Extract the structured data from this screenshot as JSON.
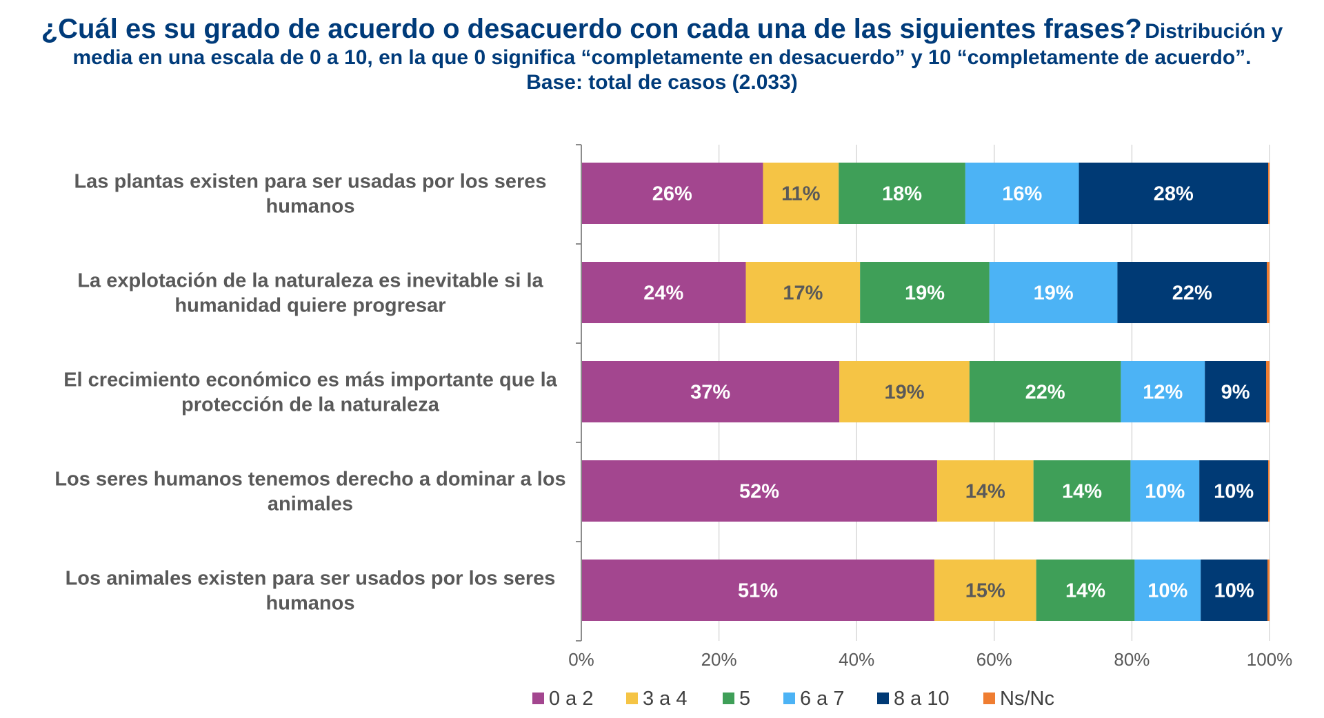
{
  "title": {
    "question": "¿Cuál es su grado de acuerdo o desacuerdo con cada una de las siguientes frases?",
    "subtitle": "Distribución y media en una escala de 0 a 10, en la que 0 significa “completamente en desacuerdo” y 10 “completamente de acuerdo”.",
    "base": "Base: total de casos (2.033)"
  },
  "chart_data": {
    "type": "bar",
    "orientation": "horizontal",
    "stacked": true,
    "percent_stacked": true,
    "xlim": [
      0,
      100
    ],
    "x_ticks": [
      "0%",
      "20%",
      "40%",
      "60%",
      "80%",
      "100%"
    ],
    "grid": true,
    "legend_position": "bottom",
    "categories": [
      [
        "Las plantas existen para ser usadas por los seres",
        "humanos"
      ],
      [
        "La explotación de la naturaleza es inevitable si la",
        "humanidad quiere progresar"
      ],
      [
        "El crecimiento económico es más importante que la",
        "protección de la naturaleza"
      ],
      [
        "Los seres humanos tenemos derecho a dominar a los",
        "animales"
      ],
      [
        "Los animales existen para ser usados por los seres",
        "humanos"
      ]
    ],
    "series": [
      {
        "name": "0 a 2",
        "color": "#a3468f",
        "label_color": "#ffffff",
        "values": [
          26.4,
          23.9,
          37.5,
          51.7,
          51.3
        ],
        "labels": [
          "26%",
          "24%",
          "37%",
          "52%",
          "51%"
        ]
      },
      {
        "name": "3 a 4",
        "color": "#f5c445",
        "label_color": "#595959",
        "values": [
          11.0,
          16.6,
          18.9,
          14.0,
          14.8
        ],
        "labels": [
          "11%",
          "17%",
          "19%",
          "14%",
          "15%"
        ]
      },
      {
        "name": "5",
        "color": "#3f9f58",
        "label_color": "#ffffff",
        "values": [
          18.4,
          18.8,
          22.0,
          14.1,
          14.3
        ],
        "labels": [
          "18%",
          "19%",
          "22%",
          "14%",
          "14%"
        ]
      },
      {
        "name": "6 a 7",
        "color": "#4cb3f5",
        "label_color": "#ffffff",
        "values": [
          16.5,
          18.6,
          12.2,
          10.0,
          9.6
        ],
        "labels": [
          "16%",
          "19%",
          "12%",
          "10%",
          "10%"
        ]
      },
      {
        "name": "8 a 10",
        "color": "#003a75",
        "label_color": "#ffffff",
        "values": [
          27.5,
          21.7,
          8.9,
          10.0,
          9.7
        ],
        "labels": [
          "28%",
          "22%",
          "9%",
          "10%",
          "10%"
        ]
      },
      {
        "name": "Ns/Nc",
        "color": "#ef7d31",
        "label_color": "#ffffff",
        "values": [
          0.2,
          0.4,
          0.5,
          0.2,
          0.3
        ],
        "labels": [
          "",
          "",
          "",
          "",
          ""
        ]
      }
    ]
  }
}
